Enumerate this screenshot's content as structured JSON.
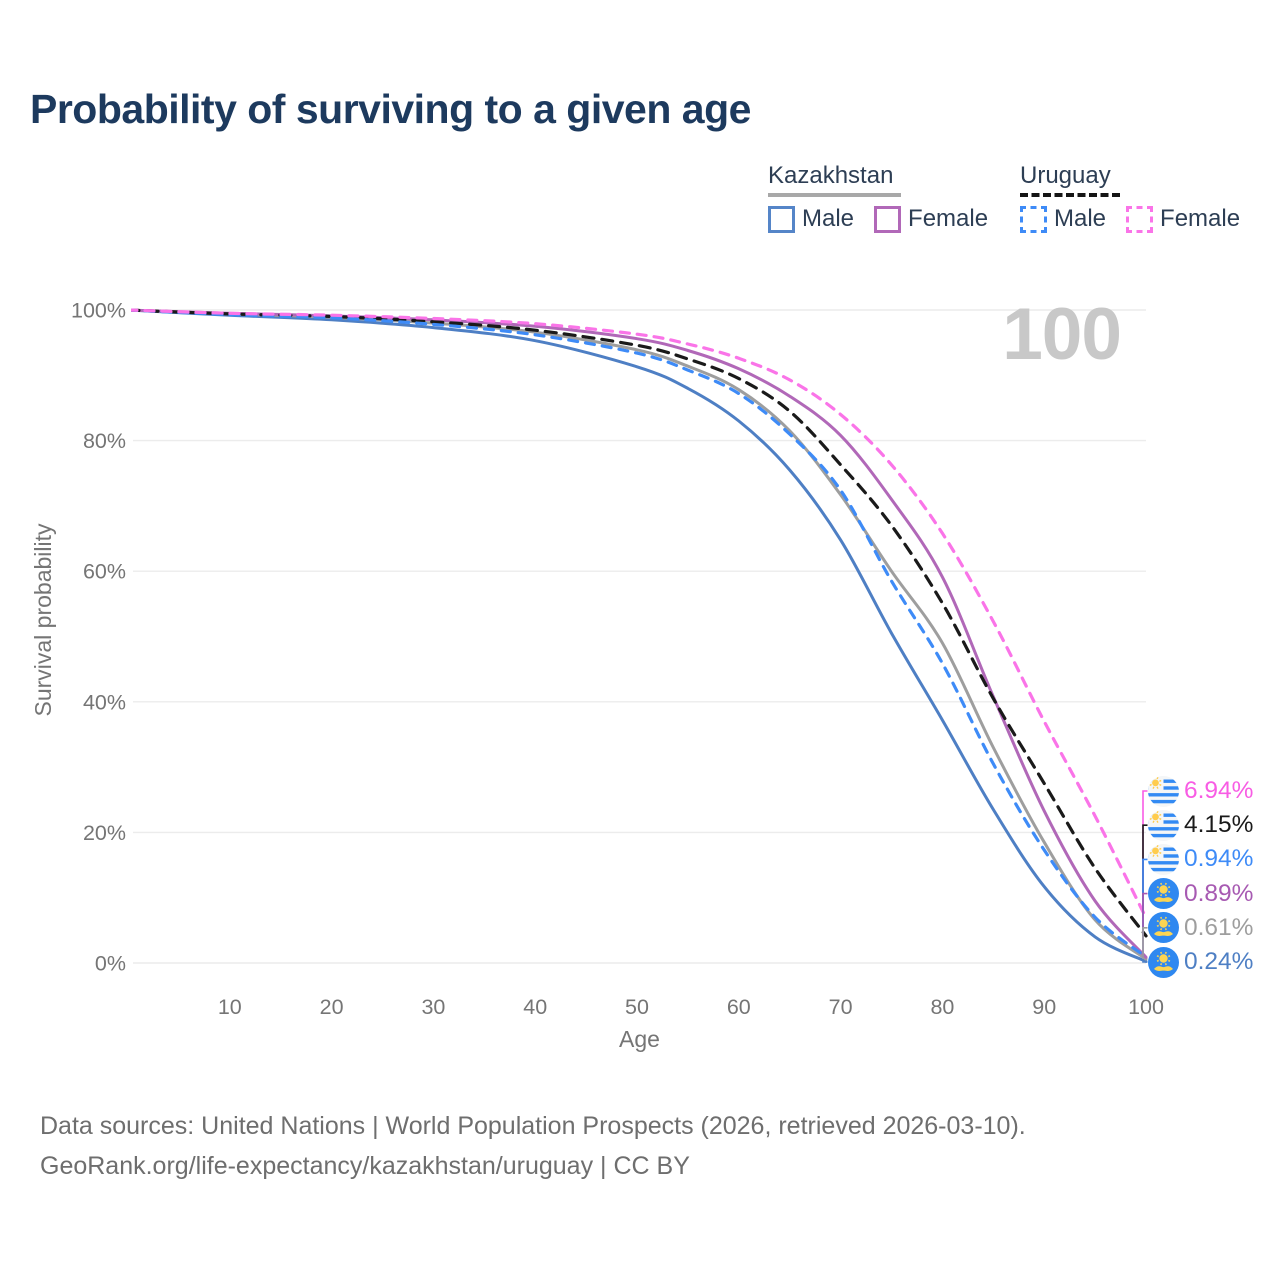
{
  "title": "Probability of surviving to a given age",
  "watermark": "100",
  "legend": {
    "groups": [
      {
        "country": "Kazakhstan",
        "line_style": "solid",
        "underline_color": "#a8a8a8",
        "items": [
          {
            "label": "Male",
            "color": "#5585c8",
            "dashed": false
          },
          {
            "label": "Female",
            "color": "#b168b8",
            "dashed": false
          }
        ]
      },
      {
        "country": "Uruguay",
        "line_style": "dashed",
        "underline_color": "#151515",
        "items": [
          {
            "label": "Male",
            "color": "#3e8bf7",
            "dashed": true
          },
          {
            "label": "Female",
            "color": "#fa74e8",
            "dashed": true
          }
        ]
      }
    ]
  },
  "axes": {
    "x_label": "Age",
    "y_label": "Survival probability",
    "x_ticks": [
      10,
      20,
      30,
      40,
      50,
      60,
      70,
      80,
      90,
      100
    ],
    "y_ticks": [
      {
        "label": "0%",
        "value": 0
      },
      {
        "label": "20%",
        "value": 20
      },
      {
        "label": "40%",
        "value": 40
      },
      {
        "label": "60%",
        "value": 60
      },
      {
        "label": "80%",
        "value": 80
      },
      {
        "label": "100%",
        "value": 100
      }
    ]
  },
  "end_labels": [
    {
      "series": "uy_female",
      "flag": "uruguay",
      "value": "6.94%",
      "color": "#f85ce4"
    },
    {
      "series": "uy_both",
      "flag": "uruguay",
      "value": "4.15%",
      "color": "#1a1a1a"
    },
    {
      "series": "uy_male",
      "flag": "uruguay",
      "value": "0.94%",
      "color": "#3e8bf7"
    },
    {
      "series": "kz_female",
      "flag": "kazakhstan",
      "value": "0.89%",
      "color": "#a75ab2"
    },
    {
      "series": "kz_both",
      "flag": "kazakhstan",
      "value": "0.61%",
      "color": "#9e9e9e"
    },
    {
      "series": "kz_male",
      "flag": "kazakhstan",
      "value": "0.24%",
      "color": "#4e7fc4"
    }
  ],
  "footer": {
    "line1": "Data sources: United Nations | World Population Prospects (2026, retrieved 2026-03-10).",
    "line2": "GeoRank.org/life-expectancy/kazakhstan/uruguay | CC BY"
  },
  "chart_data": {
    "type": "line",
    "title": "Probability of surviving to a given age",
    "xlabel": "Age",
    "ylabel": "Survival probability",
    "xlim": [
      0,
      100
    ],
    "ylim": [
      0,
      100
    ],
    "grid": true,
    "legend_position": "top-right",
    "x": [
      0,
      10,
      20,
      30,
      40,
      50,
      55,
      60,
      65,
      70,
      75,
      80,
      85,
      90,
      95,
      100
    ],
    "series": [
      {
        "key": "kz_male",
        "name": "Kazakhstan Male",
        "color": "#4e7fc4",
        "dash": "solid",
        "values": [
          100,
          99.2,
          98.5,
          97.3,
          95.3,
          91.3,
          88.0,
          83.0,
          75.5,
          64.8,
          50.5,
          37.2,
          23.5,
          11.7,
          4.0,
          0.24
        ],
        "end_value_label": "0.24%"
      },
      {
        "key": "kz_both",
        "name": "Kazakhstan Both sexes",
        "color": "#9e9e9e",
        "dash": "solid",
        "values": [
          100,
          99.4,
          98.9,
          98.0,
          96.6,
          93.9,
          91.4,
          87.8,
          81.5,
          71.7,
          60.0,
          49.0,
          33.0,
          18.5,
          6.6,
          0.61
        ],
        "end_value_label": "0.61%"
      },
      {
        "key": "kz_female",
        "name": "Kazakhstan Female",
        "color": "#b168b8",
        "dash": "solid",
        "values": [
          100,
          99.5,
          99.1,
          98.5,
          97.5,
          95.6,
          93.8,
          91.0,
          86.8,
          80.8,
          71.0,
          59.1,
          40.8,
          23.3,
          9.5,
          0.89
        ],
        "end_value_label": "0.89%"
      },
      {
        "key": "uy_both",
        "name": "Uruguay Both sexes",
        "color": "#1a1a1a",
        "dash": "dashed",
        "values": [
          100,
          99.4,
          99.0,
          98.2,
          96.9,
          94.6,
          92.5,
          89.5,
          84.5,
          76.3,
          67.0,
          55.1,
          40.5,
          27.5,
          14.5,
          4.15
        ],
        "end_value_label": "4.15%"
      },
      {
        "key": "uy_male",
        "name": "Uruguay Male",
        "color": "#3e8bf7",
        "dash": "dashed",
        "values": [
          100,
          99.3,
          98.8,
          97.8,
          96.2,
          93.4,
          90.8,
          87.2,
          81.0,
          72.4,
          58.5,
          45.9,
          30.5,
          17.3,
          7.0,
          0.94
        ],
        "end_value_label": "0.94%"
      },
      {
        "key": "uy_female",
        "name": "Uruguay Female",
        "color": "#fa74e8",
        "dash": "dashed",
        "values": [
          100,
          99.5,
          99.2,
          98.7,
          97.9,
          96.3,
          94.8,
          92.6,
          89.3,
          84.0,
          76.3,
          65.8,
          52.3,
          37.0,
          22.5,
          6.94
        ],
        "end_value_label": "6.94%"
      }
    ]
  }
}
